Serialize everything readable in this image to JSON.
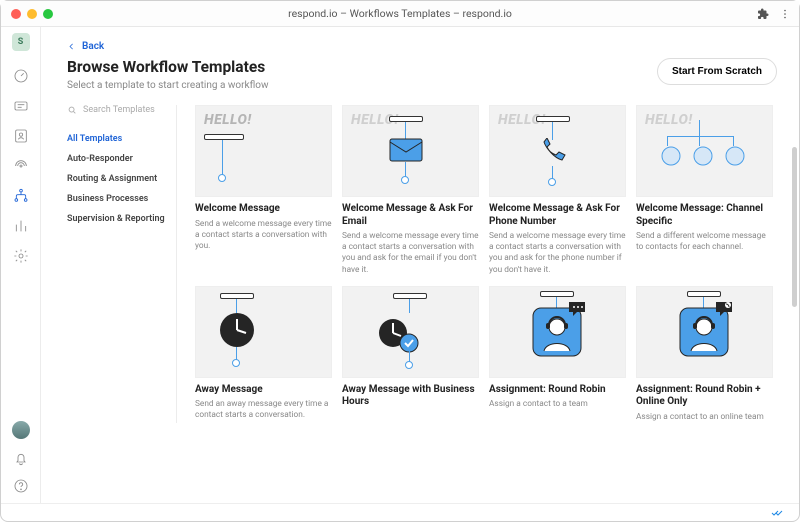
{
  "window": {
    "title": "respond.io – Workflows Templates – respond.io"
  },
  "back_label": "Back",
  "page": {
    "title": "Browse Workflow Templates",
    "subtitle": "Select a template to start creating a workflow"
  },
  "scratch_btn": "Start From Scratch",
  "search": {
    "placeholder": "Search Templates"
  },
  "categories": [
    {
      "label": "All Templates",
      "active": true
    },
    {
      "label": "Auto-Responder"
    },
    {
      "label": "Routing & Assignment"
    },
    {
      "label": "Business Processes"
    },
    {
      "label": "Supervision & Reporting"
    }
  ],
  "cards": [
    {
      "title": "Welcome Message",
      "desc": "Send a welcome message every time a contact starts a conversation with you.",
      "hello": true,
      "hello_dark": true,
      "icon": "none"
    },
    {
      "title": "Welcome Message & Ask For Email",
      "desc": "Send a welcome message every time a contact starts a conversation with you and ask for the email if you don't have it.",
      "hello": true,
      "icon": "mail"
    },
    {
      "title": "Welcome Message & Ask For Phone Number",
      "desc": "Send a welcome message every time a contact starts a conversation with you and ask for the phone number if you don't have it.",
      "hello": true,
      "icon": "phone"
    },
    {
      "title": "Welcome Message: Channel Specific",
      "desc": "Send a different welcome message to contacts for each channel.",
      "hello": true,
      "icon": "channels"
    },
    {
      "title": "Away Message",
      "desc": "Send an away message every time a contact starts a conversation.",
      "icon": "clock"
    },
    {
      "title": "Away Message with Business Hours",
      "desc": "",
      "icon": "clock2"
    },
    {
      "title": "Assignment: Round Robin",
      "desc": "Assign a contact to a team",
      "icon": "agent"
    },
    {
      "title": "Assignment: Round Robin + Online Only",
      "desc": "Assign a contact to an online team",
      "icon": "agent2"
    }
  ],
  "colors": {
    "accent": "#1e63d6",
    "thumb_bg": "#f2f2f2",
    "blue": "#4b9fe8",
    "dark": "#252525"
  }
}
